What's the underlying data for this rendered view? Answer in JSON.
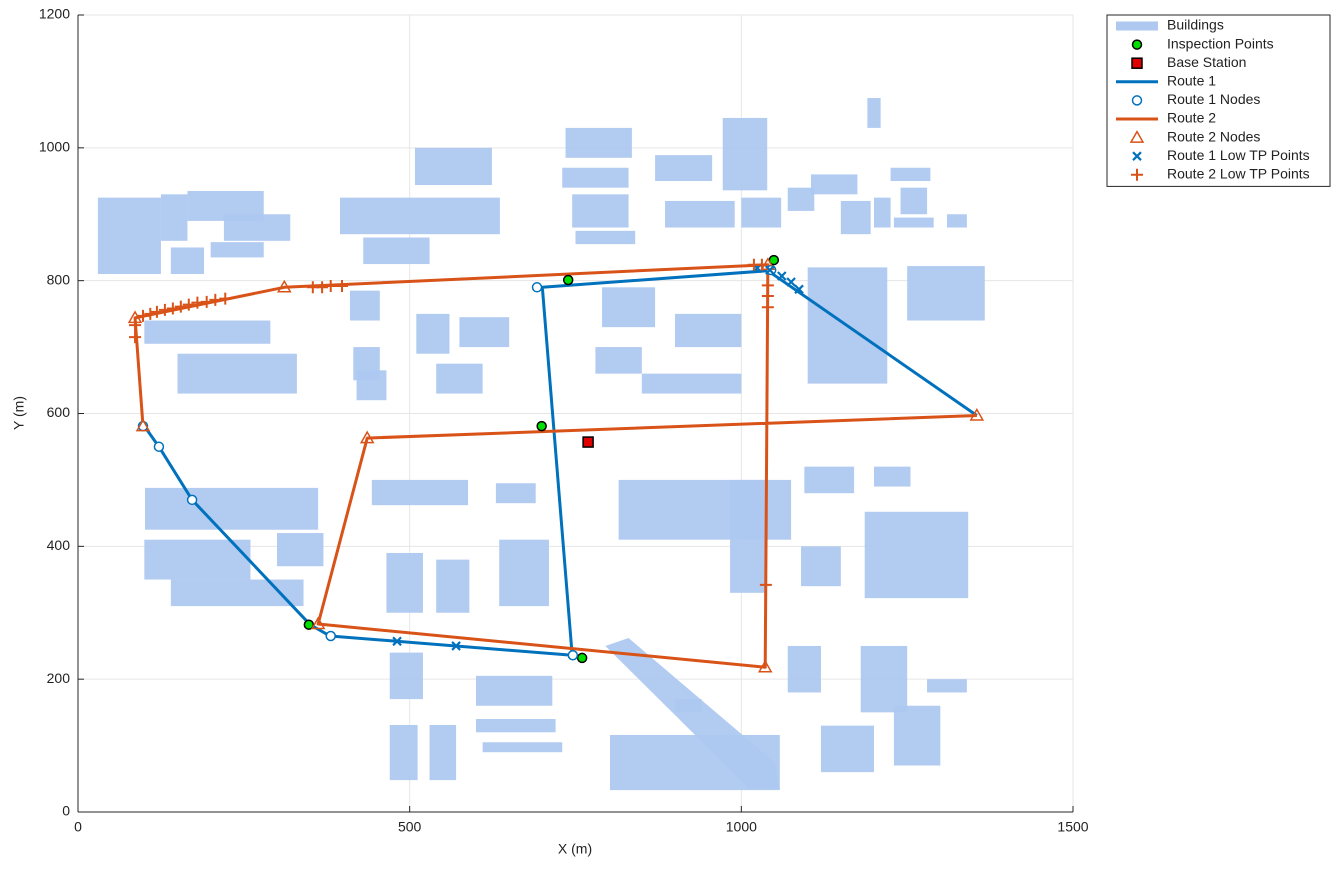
{
  "chart_data": {
    "type": "line",
    "xlabel": "X (m)",
    "ylabel": "Y (m)",
    "xlim": [
      0,
      1500
    ],
    "ylim": [
      0,
      1200
    ],
    "xticks": [
      0,
      500,
      1000,
      1500
    ],
    "yticks": [
      0,
      200,
      400,
      600,
      800,
      1000,
      1200
    ],
    "grid": true,
    "legend_location": "northeastoutside",
    "series": [
      {
        "name": "Buildings",
        "kind": "buildings",
        "color": "#aec8f0",
        "rects": [
          [
            30,
            810,
            125,
            925
          ],
          [
            125,
            860,
            165,
            930
          ],
          [
            165,
            890,
            280,
            935
          ],
          [
            140,
            810,
            190,
            850
          ],
          [
            220,
            860,
            320,
            900
          ],
          [
            200,
            835,
            280,
            858
          ],
          [
            508,
            944,
            624,
            1000
          ],
          [
            395,
            870,
            636,
            925
          ],
          [
            430,
            825,
            530,
            865
          ],
          [
            735,
            985,
            835,
            1030
          ],
          [
            730,
            940,
            830,
            970
          ],
          [
            745,
            880,
            830,
            930
          ],
          [
            750,
            855,
            840,
            875
          ],
          [
            870,
            950,
            956,
            989
          ],
          [
            885,
            880,
            990,
            920
          ],
          [
            972,
            936,
            1039,
            1045
          ],
          [
            1000,
            880,
            1060,
            925
          ],
          [
            1070,
            905,
            1110,
            940
          ],
          [
            1105,
            930,
            1175,
            960
          ],
          [
            1150,
            870,
            1195,
            920
          ],
          [
            1190,
            1030,
            1210,
            1075
          ],
          [
            1225,
            950,
            1285,
            970
          ],
          [
            1240,
            900,
            1280,
            940
          ],
          [
            1230,
            880,
            1290,
            895
          ],
          [
            1310,
            880,
            1340,
            900
          ],
          [
            1200,
            880,
            1225,
            925
          ],
          [
            410,
            740,
            455,
            785
          ],
          [
            415,
            650,
            455,
            700
          ],
          [
            420,
            620,
            465,
            665
          ],
          [
            510,
            690,
            560,
            750
          ],
          [
            540,
            630,
            610,
            675
          ],
          [
            575,
            700,
            650,
            745
          ],
          [
            790,
            730,
            870,
            790
          ],
          [
            780,
            660,
            850,
            700
          ],
          [
            900,
            700,
            1000,
            750
          ],
          [
            850,
            630,
            1000,
            660
          ],
          [
            1100,
            645,
            1220,
            820
          ],
          [
            1250,
            740,
            1367,
            822
          ],
          [
            100,
            705,
            290,
            740
          ],
          [
            150,
            630,
            330,
            690
          ],
          [
            443,
            462,
            588,
            500
          ],
          [
            630,
            465,
            690,
            495
          ],
          [
            465,
            300,
            520,
            390
          ],
          [
            540,
            300,
            590,
            380
          ],
          [
            635,
            310,
            710,
            410
          ],
          [
            815,
            410,
            1075,
            500
          ],
          [
            983,
            330,
            1036,
            500
          ],
          [
            1095,
            480,
            1170,
            520
          ],
          [
            1200,
            490,
            1255,
            520
          ],
          [
            1186,
            322,
            1342,
            452
          ],
          [
            1090,
            340,
            1150,
            400
          ],
          [
            101,
            425,
            362,
            488
          ],
          [
            100,
            350,
            260,
            410
          ],
          [
            140,
            310,
            340,
            350
          ],
          [
            300,
            370,
            370,
            420
          ],
          [
            470,
            170,
            520,
            240
          ],
          [
            600,
            160,
            715,
            205
          ],
          [
            600,
            120,
            720,
            140
          ],
          [
            610,
            90,
            730,
            105
          ],
          [
            470,
            48,
            512,
            131
          ],
          [
            530,
            48,
            570,
            131
          ],
          [
            802,
            33,
            1058,
            116
          ],
          [
            1120,
            60,
            1200,
            130
          ],
          [
            1180,
            150,
            1250,
            250
          ],
          [
            1230,
            70,
            1300,
            160
          ],
          [
            1070,
            180,
            1120,
            250
          ],
          [
            1280,
            180,
            1340,
            200
          ],
          [
            900,
            150,
            940,
            170
          ]
        ],
        "polygons": [
          [
            [
              795,
              250
            ],
            [
              830,
              262
            ],
            [
              1050,
              75
            ],
            [
              1058,
              35
            ],
            [
              1012,
              35
            ]
          ]
        ]
      },
      {
        "name": "Inspection Points",
        "kind": "markers",
        "marker": "circle",
        "color": "#00e000",
        "x": [
          348,
          739,
          699,
          760,
          1049
        ],
        "y": [
          282,
          801,
          581,
          232,
          831
        ]
      },
      {
        "name": "Base Station",
        "kind": "markers",
        "marker": "square",
        "color": "#e00000",
        "x": [
          769
        ],
        "y": [
          557
        ]
      },
      {
        "name": "Route 1",
        "kind": "line",
        "color": "#0072bd",
        "x": [
          100,
          122,
          172,
          350,
          380,
          745,
          700,
          1040,
          1355
        ],
        "y": [
          581,
          550,
          470,
          282,
          265,
          236,
          790,
          815,
          597
        ]
      },
      {
        "name": "Route 1 Nodes",
        "kind": "markers",
        "marker": "circle-open",
        "color": "#0072bd",
        "x": [
          98,
          122,
          172,
          381,
          746,
          692,
          1045
        ],
        "y": [
          581,
          550,
          470,
          265,
          236,
          790,
          816
        ]
      },
      {
        "name": "Route 2",
        "kind": "line",
        "color": "#d95319",
        "x": [
          98,
          86,
          311,
          1040,
          1036,
          362,
          436,
          1355
        ],
        "y": [
          581,
          744,
          790,
          824,
          218,
          283,
          563,
          597
        ]
      },
      {
        "name": "Route 2 Nodes",
        "kind": "markers",
        "marker": "triangle-open",
        "color": "#d95319",
        "x": [
          98,
          86,
          311,
          1040,
          1036,
          362,
          436,
          1355
        ],
        "y": [
          581,
          744,
          790,
          824,
          218,
          283,
          563,
          597
        ]
      },
      {
        "name": "Route 1 Low TP Points",
        "kind": "markers",
        "marker": "x",
        "color": "#0072bd",
        "x": [
          481,
          570,
          1024,
          1043,
          1061,
          1075,
          1087
        ],
        "y": [
          257,
          250,
          819,
          816,
          807,
          798,
          787
        ]
      },
      {
        "name": "Route 2 Low TP Points",
        "kind": "markers",
        "marker": "plus",
        "color": "#d95319",
        "x": [
          98,
          109,
          119,
          131,
          143,
          155,
          167,
          180,
          194,
          207,
          222,
          86,
          86,
          354,
          368,
          381,
          398,
          1019,
          1031,
          1040,
          1040,
          1040,
          1037
        ],
        "y": [
          747,
          750,
          753,
          756,
          758,
          761,
          764,
          767,
          768,
          771,
          773,
          733,
          715,
          790,
          790,
          792,
          792,
          824,
          824,
          793,
          777,
          760,
          342
        ]
      }
    ]
  }
}
